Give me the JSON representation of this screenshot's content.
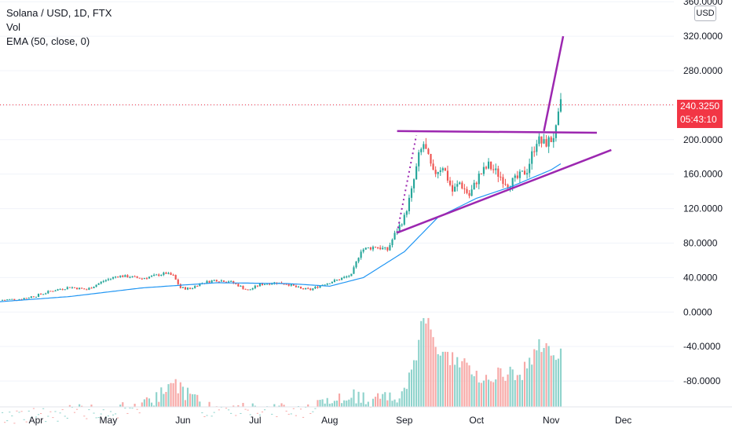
{
  "legend": {
    "title": "Solana / USD, 1D, FTX",
    "vol": "Vol",
    "ema": "EMA (50, close, 0)"
  },
  "price_axis": {
    "unit": "USD"
  },
  "last_price": {
    "value": "240.3250",
    "countdown": "05:43:10"
  },
  "colors": {
    "up": "#26a69a",
    "down": "#ef5350",
    "ema": "#2196f3",
    "trendline": "#9c27b0",
    "last_price": "#f23645",
    "vol_up": "#8fd3cc",
    "vol_down": "#f7a9a7"
  },
  "chart_data": {
    "type": "candlestick",
    "y_ticks": [
      "360.0000",
      "320.0000",
      "280.0000",
      "240.0000",
      "200.0000",
      "160.0000",
      "120.0000",
      "80.0000",
      "40.0000",
      "0.0000",
      "-40.0000",
      "-80.0000"
    ],
    "ylim": [
      -110,
      362
    ],
    "x_ticks": [
      "Apr",
      "May",
      "Jun",
      "Jul",
      "Aug",
      "Sep",
      "Oct",
      "Nov",
      "Dec"
    ],
    "tick_dates": [
      "2021-04-01",
      "2021-05-01",
      "2021-06-01",
      "2021-07-01",
      "2021-08-01",
      "2021-09-01",
      "2021-10-01",
      "2021-11-01",
      "2021-12-01"
    ],
    "xlim": [
      "2021-03-17",
      "2021-12-22"
    ],
    "close_path": [
      [
        "2021-03-17",
        14
      ],
      [
        "2021-03-25",
        15
      ],
      [
        "2021-04-01",
        19
      ],
      [
        "2021-04-08",
        25
      ],
      [
        "2021-04-15",
        29
      ],
      [
        "2021-04-22",
        26
      ],
      [
        "2021-04-29",
        36
      ],
      [
        "2021-05-05",
        42
      ],
      [
        "2021-05-10",
        41
      ],
      [
        "2021-05-15",
        39
      ],
      [
        "2021-05-20",
        42
      ],
      [
        "2021-05-25",
        45
      ],
      [
        "2021-05-28",
        42
      ],
      [
        "2021-05-31",
        28
      ],
      [
        "2021-06-04",
        27
      ],
      [
        "2021-06-08",
        33
      ],
      [
        "2021-06-14",
        37
      ],
      [
        "2021-06-20",
        36
      ],
      [
        "2021-06-24",
        31
      ],
      [
        "2021-06-28",
        25
      ],
      [
        "2021-07-03",
        32
      ],
      [
        "2021-07-09",
        34
      ],
      [
        "2021-07-14",
        33
      ],
      [
        "2021-07-20",
        27
      ],
      [
        "2021-07-24",
        26
      ],
      [
        "2021-07-29",
        32
      ],
      [
        "2021-08-05",
        38
      ],
      [
        "2021-08-10",
        43
      ],
      [
        "2021-08-14",
        72
      ],
      [
        "2021-08-20",
        76
      ],
      [
        "2021-08-25",
        72
      ],
      [
        "2021-08-28",
        90
      ],
      [
        "2021-09-01",
        110
      ],
      [
        "2021-09-04",
        140
      ],
      [
        "2021-09-07",
        180
      ],
      [
        "2021-09-09",
        195
      ],
      [
        "2021-09-13",
        160
      ],
      [
        "2021-09-17",
        170
      ],
      [
        "2021-09-21",
        140
      ],
      [
        "2021-09-24",
        150
      ],
      [
        "2021-09-28",
        135
      ],
      [
        "2021-10-02",
        158
      ],
      [
        "2021-10-06",
        170
      ],
      [
        "2021-10-10",
        160
      ],
      [
        "2021-10-14",
        148
      ],
      [
        "2021-10-18",
        155
      ],
      [
        "2021-10-22",
        165
      ],
      [
        "2021-10-26",
        200
      ],
      [
        "2021-10-29",
        195
      ],
      [
        "2021-11-01",
        200
      ],
      [
        "2021-11-03",
        210
      ],
      [
        "2021-11-05",
        240
      ]
    ],
    "ema_50": [
      [
        "2021-03-17",
        12
      ],
      [
        "2021-04-15",
        18
      ],
      [
        "2021-05-15",
        28
      ],
      [
        "2021-06-15",
        34
      ],
      [
        "2021-07-15",
        33
      ],
      [
        "2021-08-01",
        30
      ],
      [
        "2021-08-15",
        40
      ],
      [
        "2021-09-01",
        70
      ],
      [
        "2021-09-15",
        110
      ],
      [
        "2021-10-01",
        132
      ],
      [
        "2021-10-15",
        145
      ],
      [
        "2021-11-01",
        165
      ],
      [
        "2021-11-05",
        172
      ]
    ],
    "volume_tops": [
      [
        "2021-03-17",
        -112
      ],
      [
        "2021-05-15",
        -103
      ],
      [
        "2021-05-28",
        -73
      ],
      [
        "2021-06-10",
        -103
      ],
      [
        "2021-07-20",
        -106
      ],
      [
        "2021-08-10",
        -88
      ],
      [
        "2021-08-20",
        -95
      ],
      [
        "2021-09-01",
        -85
      ],
      [
        "2021-09-06",
        -42
      ],
      [
        "2021-09-09",
        10
      ],
      [
        "2021-09-15",
        -40
      ],
      [
        "2021-09-23",
        -46
      ],
      [
        "2021-10-01",
        -66
      ],
      [
        "2021-10-20",
        -62
      ],
      [
        "2021-10-27",
        -30
      ],
      [
        "2021-11-02",
        -40
      ],
      [
        "2021-11-05",
        -38
      ]
    ],
    "annotations": {
      "resistance": [
        [
          "2021-08-29",
          210
        ],
        [
          "2021-11-20",
          208
        ]
      ],
      "support": [
        [
          "2021-08-29",
          92
        ],
        [
          "2021-11-26",
          188
        ]
      ],
      "breakout_dotted": [
        [
          "2021-08-29",
          92
        ],
        [
          "2021-09-06",
          205
        ]
      ],
      "projection": [
        [
          "2021-10-29",
          210
        ],
        [
          "2021-11-06",
          320
        ]
      ]
    }
  }
}
